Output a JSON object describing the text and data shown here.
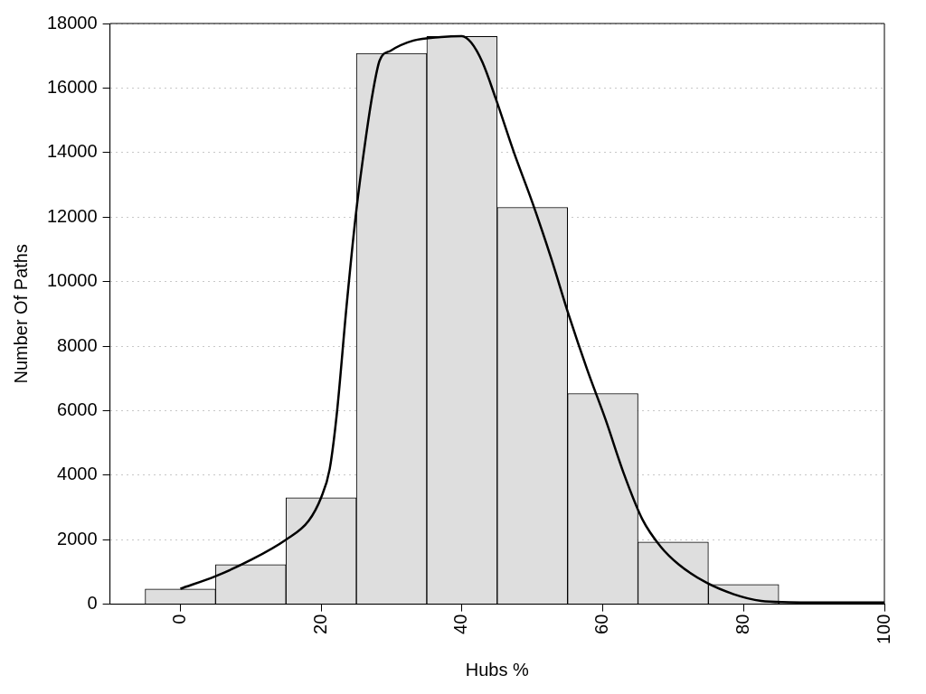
{
  "chart_data": {
    "type": "histogram",
    "xlabel": "Hubs %",
    "ylabel": "Number Of Paths",
    "xlim": [
      -10,
      100
    ],
    "xticks": [
      0,
      20,
      40,
      60,
      80,
      100
    ],
    "ylim": [
      0,
      18000
    ],
    "yticks": [
      0,
      2000,
      4000,
      6000,
      8000,
      10000,
      12000,
      14000,
      16000,
      18000
    ],
    "grid": "y",
    "series": [
      {
        "color": "#dedede",
        "bins": [
          -5,
          5,
          15,
          25,
          35,
          45,
          55,
          65,
          75,
          85,
          95,
          105
        ],
        "values": [
          470,
          1230,
          3300,
          17070,
          17600,
          12300,
          6530,
          1930,
          610,
          70,
          70
        ]
      },
      {
        "type": "line",
        "color": "#000000",
        "marker": "none",
        "x": [
          0,
          5,
          10,
          15,
          18.2,
          20,
          21.2,
          22.2,
          23.6,
          24.9,
          26.4,
          27.4,
          28.3,
          29.9,
          33.1,
          37,
          40,
          41.3,
          42.9,
          44.8,
          47.4,
          50,
          52.6,
          55.2,
          57.8,
          60.4,
          63,
          65.6,
          68.2,
          70.8,
          74.7,
          78.6,
          82.5,
          86.4,
          89.9,
          100
        ],
        "values": [
          480,
          870,
          1370,
          2000,
          2580,
          3310,
          4180,
          5860,
          9230,
          12030,
          14550,
          15950,
          16850,
          17160,
          17470,
          17580,
          17610,
          17410,
          16800,
          15670,
          13990,
          12450,
          10770,
          8940,
          7260,
          5720,
          4040,
          2640,
          1790,
          1230,
          670,
          310,
          100,
          60,
          50,
          50
        ]
      }
    ]
  }
}
